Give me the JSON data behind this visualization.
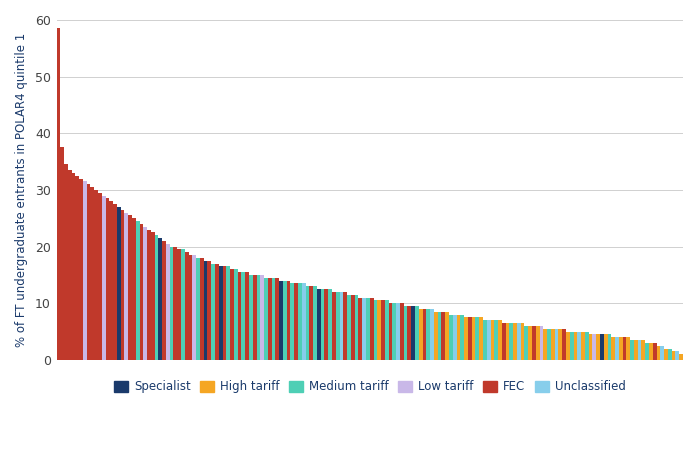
{
  "colors": {
    "Specialist": "#1a3a6b",
    "High tariff": "#f5a623",
    "Medium tariff": "#4ecfb5",
    "Low tariff": "#c9b8e8",
    "FEC": "#c0392b",
    "Unclassified": "#87ceeb"
  },
  "ylabel": "% of FT undergraduate entrants in POLAR4 quintile 1",
  "ylim": [
    0,
    60
  ],
  "yticks": [
    0,
    10,
    20,
    30,
    40,
    50,
    60
  ],
  "background_color": "#ffffff",
  "grid_color": "#d0d0d0",
  "legend_labels": [
    "Specialist",
    "High tariff",
    "Medium tariff",
    "Low tariff",
    "FEC",
    "Unclassified"
  ],
  "bars": [
    {
      "value": 58.5,
      "category": "FEC"
    },
    {
      "value": 37.5,
      "category": "FEC"
    },
    {
      "value": 34.5,
      "category": "FEC"
    },
    {
      "value": 33.5,
      "category": "FEC"
    },
    {
      "value": 33.0,
      "category": "FEC"
    },
    {
      "value": 32.5,
      "category": "FEC"
    },
    {
      "value": 32.0,
      "category": "FEC"
    },
    {
      "value": 31.5,
      "category": "Low tariff"
    },
    {
      "value": 31.0,
      "category": "FEC"
    },
    {
      "value": 30.5,
      "category": "FEC"
    },
    {
      "value": 30.0,
      "category": "FEC"
    },
    {
      "value": 29.5,
      "category": "FEC"
    },
    {
      "value": 29.0,
      "category": "Low tariff"
    },
    {
      "value": 28.5,
      "category": "FEC"
    },
    {
      "value": 28.0,
      "category": "FEC"
    },
    {
      "value": 27.5,
      "category": "FEC"
    },
    {
      "value": 27.0,
      "category": "Specialist"
    },
    {
      "value": 26.5,
      "category": "FEC"
    },
    {
      "value": 26.0,
      "category": "Low tariff"
    },
    {
      "value": 25.5,
      "category": "FEC"
    },
    {
      "value": 25.0,
      "category": "FEC"
    },
    {
      "value": 24.5,
      "category": "Medium tariff"
    },
    {
      "value": 24.0,
      "category": "FEC"
    },
    {
      "value": 23.5,
      "category": "Low tariff"
    },
    {
      "value": 23.0,
      "category": "FEC"
    },
    {
      "value": 22.5,
      "category": "FEC"
    },
    {
      "value": 22.0,
      "category": "Medium tariff"
    },
    {
      "value": 21.5,
      "category": "Specialist"
    },
    {
      "value": 21.0,
      "category": "FEC"
    },
    {
      "value": 20.5,
      "category": "Low tariff"
    },
    {
      "value": 20.0,
      "category": "Medium tariff"
    },
    {
      "value": 20.0,
      "category": "FEC"
    },
    {
      "value": 19.5,
      "category": "FEC"
    },
    {
      "value": 19.5,
      "category": "Medium tariff"
    },
    {
      "value": 19.0,
      "category": "FEC"
    },
    {
      "value": 18.5,
      "category": "FEC"
    },
    {
      "value": 18.5,
      "category": "Low tariff"
    },
    {
      "value": 18.0,
      "category": "Medium tariff"
    },
    {
      "value": 18.0,
      "category": "FEC"
    },
    {
      "value": 17.5,
      "category": "Specialist"
    },
    {
      "value": 17.5,
      "category": "FEC"
    },
    {
      "value": 17.0,
      "category": "Medium tariff"
    },
    {
      "value": 17.0,
      "category": "FEC"
    },
    {
      "value": 16.5,
      "category": "Specialist"
    },
    {
      "value": 16.5,
      "category": "FEC"
    },
    {
      "value": 16.5,
      "category": "Medium tariff"
    },
    {
      "value": 16.0,
      "category": "FEC"
    },
    {
      "value": 16.0,
      "category": "Medium tariff"
    },
    {
      "value": 15.5,
      "category": "FEC"
    },
    {
      "value": 15.5,
      "category": "Medium tariff"
    },
    {
      "value": 15.5,
      "category": "FEC"
    },
    {
      "value": 15.0,
      "category": "Medium tariff"
    },
    {
      "value": 15.0,
      "category": "FEC"
    },
    {
      "value": 15.0,
      "category": "Medium tariff"
    },
    {
      "value": 15.0,
      "category": "Low tariff"
    },
    {
      "value": 14.5,
      "category": "Medium tariff"
    },
    {
      "value": 14.5,
      "category": "FEC"
    },
    {
      "value": 14.5,
      "category": "Medium tariff"
    },
    {
      "value": 14.5,
      "category": "FEC"
    },
    {
      "value": 14.0,
      "category": "Specialist"
    },
    {
      "value": 14.0,
      "category": "Medium tariff"
    },
    {
      "value": 14.0,
      "category": "FEC"
    },
    {
      "value": 13.5,
      "category": "Medium tariff"
    },
    {
      "value": 13.5,
      "category": "FEC"
    },
    {
      "value": 13.5,
      "category": "Medium tariff"
    },
    {
      "value": 13.5,
      "category": "Unclassified"
    },
    {
      "value": 13.0,
      "category": "Medium tariff"
    },
    {
      "value": 13.0,
      "category": "FEC"
    },
    {
      "value": 13.0,
      "category": "Medium tariff"
    },
    {
      "value": 12.5,
      "category": "Specialist"
    },
    {
      "value": 12.5,
      "category": "Medium tariff"
    },
    {
      "value": 12.5,
      "category": "FEC"
    },
    {
      "value": 12.5,
      "category": "Medium tariff"
    },
    {
      "value": 12.0,
      "category": "FEC"
    },
    {
      "value": 12.0,
      "category": "Medium tariff"
    },
    {
      "value": 12.0,
      "category": "Unclassified"
    },
    {
      "value": 12.0,
      "category": "FEC"
    },
    {
      "value": 11.5,
      "category": "Medium tariff"
    },
    {
      "value": 11.5,
      "category": "FEC"
    },
    {
      "value": 11.5,
      "category": "Medium tariff"
    },
    {
      "value": 11.0,
      "category": "FEC"
    },
    {
      "value": 11.0,
      "category": "Unclassified"
    },
    {
      "value": 11.0,
      "category": "Medium tariff"
    },
    {
      "value": 11.0,
      "category": "FEC"
    },
    {
      "value": 10.5,
      "category": "Medium tariff"
    },
    {
      "value": 10.5,
      "category": "High tariff"
    },
    {
      "value": 10.5,
      "category": "FEC"
    },
    {
      "value": 10.5,
      "category": "Medium tariff"
    },
    {
      "value": 10.0,
      "category": "FEC"
    },
    {
      "value": 10.0,
      "category": "Medium tariff"
    },
    {
      "value": 10.0,
      "category": "Unclassified"
    },
    {
      "value": 10.0,
      "category": "FEC"
    },
    {
      "value": 9.5,
      "category": "Medium tariff"
    },
    {
      "value": 9.5,
      "category": "FEC"
    },
    {
      "value": 9.5,
      "category": "Specialist"
    },
    {
      "value": 9.5,
      "category": "Medium tariff"
    },
    {
      "value": 9.0,
      "category": "High tariff"
    },
    {
      "value": 9.0,
      "category": "FEC"
    },
    {
      "value": 9.0,
      "category": "Medium tariff"
    },
    {
      "value": 9.0,
      "category": "Unclassified"
    },
    {
      "value": 8.5,
      "category": "High tariff"
    },
    {
      "value": 8.5,
      "category": "Medium tariff"
    },
    {
      "value": 8.5,
      "category": "FEC"
    },
    {
      "value": 8.5,
      "category": "High tariff"
    },
    {
      "value": 8.0,
      "category": "Medium tariff"
    },
    {
      "value": 8.0,
      "category": "Unclassified"
    },
    {
      "value": 8.0,
      "category": "High tariff"
    },
    {
      "value": 8.0,
      "category": "Medium tariff"
    },
    {
      "value": 7.5,
      "category": "High tariff"
    },
    {
      "value": 7.5,
      "category": "FEC"
    },
    {
      "value": 7.5,
      "category": "High tariff"
    },
    {
      "value": 7.5,
      "category": "Medium tariff"
    },
    {
      "value": 7.5,
      "category": "High tariff"
    },
    {
      "value": 7.0,
      "category": "Medium tariff"
    },
    {
      "value": 7.0,
      "category": "Unclassified"
    },
    {
      "value": 7.0,
      "category": "High tariff"
    },
    {
      "value": 7.0,
      "category": "Medium tariff"
    },
    {
      "value": 7.0,
      "category": "High tariff"
    },
    {
      "value": 6.5,
      "category": "FEC"
    },
    {
      "value": 6.5,
      "category": "High tariff"
    },
    {
      "value": 6.5,
      "category": "Medium tariff"
    },
    {
      "value": 6.5,
      "category": "High tariff"
    },
    {
      "value": 6.5,
      "category": "Unclassified"
    },
    {
      "value": 6.5,
      "category": "High tariff"
    },
    {
      "value": 6.0,
      "category": "Medium tariff"
    },
    {
      "value": 6.0,
      "category": "High tariff"
    },
    {
      "value": 6.0,
      "category": "FEC"
    },
    {
      "value": 6.0,
      "category": "High tariff"
    },
    {
      "value": 6.0,
      "category": "Low tariff"
    },
    {
      "value": 5.5,
      "category": "High tariff"
    },
    {
      "value": 5.5,
      "category": "Medium tariff"
    },
    {
      "value": 5.5,
      "category": "High tariff"
    },
    {
      "value": 5.5,
      "category": "Unclassified"
    },
    {
      "value": 5.5,
      "category": "High tariff"
    },
    {
      "value": 5.5,
      "category": "FEC"
    },
    {
      "value": 5.0,
      "category": "High tariff"
    },
    {
      "value": 5.0,
      "category": "Medium tariff"
    },
    {
      "value": 5.0,
      "category": "High tariff"
    },
    {
      "value": 5.0,
      "category": "Unclassified"
    },
    {
      "value": 5.0,
      "category": "High tariff"
    },
    {
      "value": 5.0,
      "category": "Medium tariff"
    },
    {
      "value": 4.5,
      "category": "High tariff"
    },
    {
      "value": 4.5,
      "category": "Low tariff"
    },
    {
      "value": 4.5,
      "category": "High tariff"
    },
    {
      "value": 4.5,
      "category": "Specialist"
    },
    {
      "value": 4.5,
      "category": "High tariff"
    },
    {
      "value": 4.5,
      "category": "Medium tariff"
    },
    {
      "value": 4.0,
      "category": "High tariff"
    },
    {
      "value": 4.0,
      "category": "Unclassified"
    },
    {
      "value": 4.0,
      "category": "High tariff"
    },
    {
      "value": 4.0,
      "category": "FEC"
    },
    {
      "value": 4.0,
      "category": "High tariff"
    },
    {
      "value": 3.5,
      "category": "Medium tariff"
    },
    {
      "value": 3.5,
      "category": "High tariff"
    },
    {
      "value": 3.5,
      "category": "Unclassified"
    },
    {
      "value": 3.5,
      "category": "High tariff"
    },
    {
      "value": 3.0,
      "category": "Medium tariff"
    },
    {
      "value": 3.0,
      "category": "High tariff"
    },
    {
      "value": 3.0,
      "category": "FEC"
    },
    {
      "value": 2.5,
      "category": "High tariff"
    },
    {
      "value": 2.5,
      "category": "Unclassified"
    },
    {
      "value": 2.0,
      "category": "High tariff"
    },
    {
      "value": 2.0,
      "category": "Medium tariff"
    },
    {
      "value": 1.5,
      "category": "High tariff"
    },
    {
      "value": 1.5,
      "category": "Unclassified"
    },
    {
      "value": 1.0,
      "category": "High tariff"
    }
  ]
}
